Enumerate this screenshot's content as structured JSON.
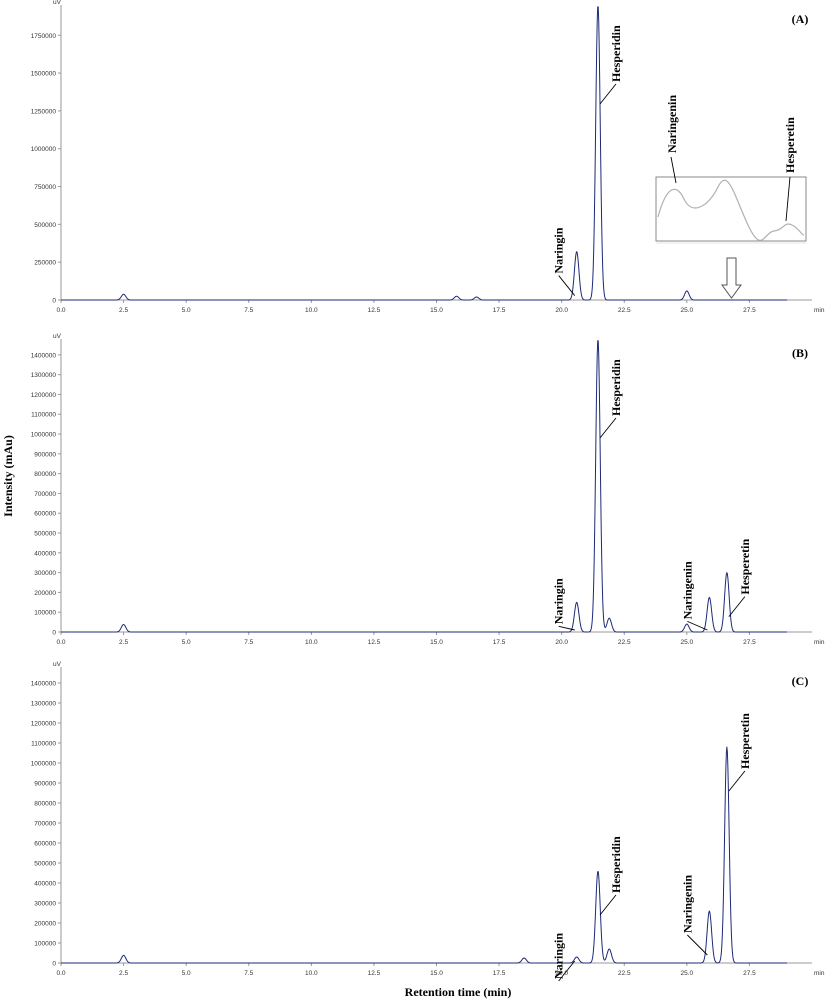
{
  "figure": {
    "ylabel": "Intensity (mAu)",
    "xlabel": "Retention time (min)",
    "y_unit": "uV",
    "x_unit": "min"
  },
  "chart_data": [
    {
      "type": "line",
      "panel_label": "(A)",
      "xlim": [
        0,
        30
      ],
      "ylim": [
        0,
        1950000
      ],
      "x_ticks": [
        "0.0",
        "2.5",
        "5.0",
        "7.5",
        "10.0",
        "12.5",
        "15.0",
        "17.5",
        "20.0",
        "22.5",
        "25.0",
        "27.5"
      ],
      "y_ticks": [
        "0",
        "250000",
        "500000",
        "750000",
        "1000000",
        "1250000",
        "1500000",
        "1750000"
      ],
      "peaks": [
        {
          "name": "Naringin",
          "rt": 20.6,
          "height": 320000
        },
        {
          "name": "Hesperidin",
          "rt": 21.45,
          "height": 1950000
        },
        {
          "name": "",
          "rt": 25.0,
          "height": 60000
        },
        {
          "name": "",
          "rt": 2.5,
          "height": 38000
        },
        {
          "name": "",
          "rt": 15.8,
          "height": 25000
        },
        {
          "name": "",
          "rt": 16.6,
          "height": 20000
        }
      ],
      "annotations": [
        "Naringin",
        "Hesperidin"
      ],
      "inset": {
        "labels": [
          "Naringenin",
          "Hesperetin"
        ]
      }
    },
    {
      "type": "line",
      "panel_label": "(B)",
      "xlim": [
        0,
        30
      ],
      "ylim": [
        0,
        1480000
      ],
      "x_ticks": [
        "0.0",
        "2.5",
        "5.0",
        "7.5",
        "10.0",
        "12.5",
        "15.0",
        "17.5",
        "20.0",
        "22.5",
        "25.0",
        "27.5"
      ],
      "y_ticks": [
        "0",
        "100000",
        "200000",
        "300000",
        "400000",
        "500000",
        "600000",
        "700000",
        "800000",
        "900000",
        "1000000",
        "1100000",
        "1200000",
        "1300000",
        "1400000"
      ],
      "peaks": [
        {
          "name": "Naringin",
          "rt": 20.6,
          "height": 150000
        },
        {
          "name": "Hesperidin",
          "rt": 21.45,
          "height": 1480000
        },
        {
          "name": "",
          "rt": 21.9,
          "height": 70000
        },
        {
          "name": "",
          "rt": 25.0,
          "height": 40000
        },
        {
          "name": "Naringenin",
          "rt": 25.9,
          "height": 175000
        },
        {
          "name": "Hesperetin",
          "rt": 26.6,
          "height": 300000
        },
        {
          "name": "",
          "rt": 2.5,
          "height": 38000
        }
      ],
      "annotations": [
        "Naringin",
        "Hesperidin",
        "Naringenin",
        "Hesperetin"
      ]
    },
    {
      "type": "line",
      "panel_label": "(C)",
      "xlim": [
        0,
        30
      ],
      "ylim": [
        0,
        1480000
      ],
      "x_ticks": [
        "0.0",
        "2.5",
        "5.0",
        "7.5",
        "10.0",
        "12.5",
        "15.0",
        "17.5",
        "20.0",
        "22.5",
        "25.0",
        "27.5"
      ],
      "y_ticks": [
        "0",
        "100000",
        "200000",
        "300000",
        "400000",
        "500000",
        "600000",
        "700000",
        "800000",
        "900000",
        "1000000",
        "1100000",
        "1200000",
        "1300000",
        "1400000"
      ],
      "peaks": [
        {
          "name": "Naringin",
          "rt": 20.6,
          "height": 30000
        },
        {
          "name": "Hesperidin",
          "rt": 21.45,
          "height": 460000
        },
        {
          "name": "",
          "rt": 21.9,
          "height": 70000
        },
        {
          "name": "Naringenin",
          "rt": 25.9,
          "height": 260000
        },
        {
          "name": "Hesperetin",
          "rt": 26.6,
          "height": 1080000
        },
        {
          "name": "",
          "rt": 18.5,
          "height": 25000
        },
        {
          "name": "",
          "rt": 2.5,
          "height": 38000
        }
      ],
      "annotations": [
        "Naringin",
        "Hesperidin",
        "Naringenin",
        "Hesperetin"
      ]
    }
  ]
}
